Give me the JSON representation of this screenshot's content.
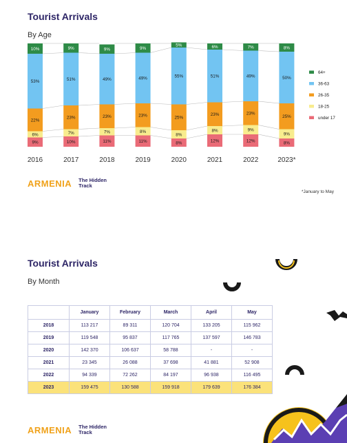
{
  "section1": {
    "title": "Tourist Arrivals",
    "subtitle": "By Age"
  },
  "section2": {
    "title": "Tourist Arrivals",
    "subtitle": "By Month"
  },
  "brand": {
    "name": "ARMENIA",
    "tagline_line1": "The Hidden",
    "tagline_line2": "Track"
  },
  "footnote": "*January to May",
  "colors": {
    "64+": "#2e8b47",
    "36-63": "#72c4f2",
    "26-35": "#f39c1f",
    "18-25": "#f8ec8e",
    "under 17": "#ea6b77",
    "title": "#2d2566",
    "highlight": "#fbe27a"
  },
  "chart_data": {
    "type": "bar",
    "stacked": true,
    "normalized": true,
    "categories": [
      "2016",
      "2017",
      "2018",
      "2019",
      "2020",
      "2021",
      "2022",
      "2023*"
    ],
    "series": [
      {
        "name": "under 17",
        "values": [
          9,
          10,
          11,
          11,
          8,
          12,
          12,
          8
        ],
        "labels": [
          "9%",
          "10%",
          "11%",
          "11%",
          "8%",
          "12%",
          "12%",
          "8%"
        ]
      },
      {
        "name": "18-25",
        "values": [
          6,
          7,
          7,
          8,
          8,
          8,
          9,
          9
        ],
        "labels": [
          "6%",
          "7%",
          "7%",
          "8%",
          "8%",
          "8%",
          "9%",
          "9%"
        ]
      },
      {
        "name": "26-35",
        "values": [
          22,
          23,
          23,
          23,
          25,
          23,
          23,
          25
        ],
        "labels": [
          "22%",
          "23%",
          "23%",
          "23%",
          "25%",
          "23%",
          "23%",
          "25%"
        ]
      },
      {
        "name": "36-63",
        "values": [
          53,
          51,
          49,
          49,
          55,
          51,
          49,
          50
        ],
        "labels": [
          "53%",
          "51%",
          "49%",
          "49%",
          "55%",
          "51%",
          "49%",
          "50%"
        ]
      },
      {
        "name": "64+",
        "values": [
          10,
          9,
          9,
          9,
          5,
          6,
          7,
          8
        ],
        "labels": [
          "10%",
          "9%",
          "9%",
          "9%",
          "5%",
          "6%",
          "7%",
          "8%"
        ]
      }
    ],
    "legend_order": [
      "64+",
      "36-63",
      "26-35",
      "18-25",
      "under 17"
    ],
    "legend_position": "right"
  },
  "table": {
    "headers": [
      "",
      "January",
      "February",
      "March",
      "April",
      "May"
    ],
    "rows": [
      [
        "2018",
        "113 217",
        "89 311",
        "120 704",
        "133 205",
        "115 962"
      ],
      [
        "2019",
        "119 548",
        "95 837",
        "117 765",
        "137 597",
        "146 783"
      ],
      [
        "2020",
        "142 370",
        "106 637",
        "58 788",
        "-",
        "-"
      ],
      [
        "2021",
        "23 345",
        "26 088",
        "37 698",
        "41 881",
        "52 908"
      ],
      [
        "2022",
        "94 339",
        "72 262",
        "84 197",
        "96 938",
        "116 495"
      ],
      [
        "2023",
        "159 475",
        "130 588",
        "159 918",
        "179 639",
        "176 384"
      ]
    ]
  }
}
